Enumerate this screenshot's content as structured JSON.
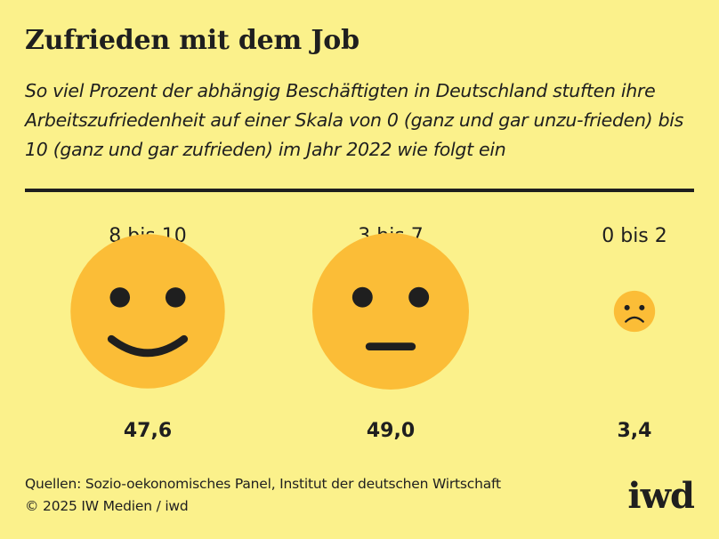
{
  "title": "Zufrieden mit dem Job",
  "subtitle": "So viel Prozent der abhängig Beschäftigten in Deutschland stuften ihre Arbeitszufriedenheit auf einer Skala von 0 (ganz und gar unzu-frieden) bis 10 (ganz und gar zufrieden) im Jahr 2022 wie folgt ein",
  "footer": {
    "sources": "Quellen: Sozio-oekonomisches Panel, Institut der deutschen Wirtschaft",
    "copyright": "© 2025 IW Medien / iwd"
  },
  "logo": "iwd",
  "colors": {
    "background": "#fbf18b",
    "face": "#fbbd37",
    "features": "#1f1f1f"
  },
  "chart_data": {
    "type": "pictogram",
    "categories": [
      "8 bis 10",
      "3 bis 7",
      "0 bis 2"
    ],
    "values": [
      47.6,
      49.0,
      3.4
    ],
    "value_labels": [
      "47,6",
      "49,0",
      "3,4"
    ],
    "icons": [
      "happy-face-icon",
      "neutral-face-icon",
      "sad-face-icon"
    ],
    "unit": "Prozent"
  }
}
